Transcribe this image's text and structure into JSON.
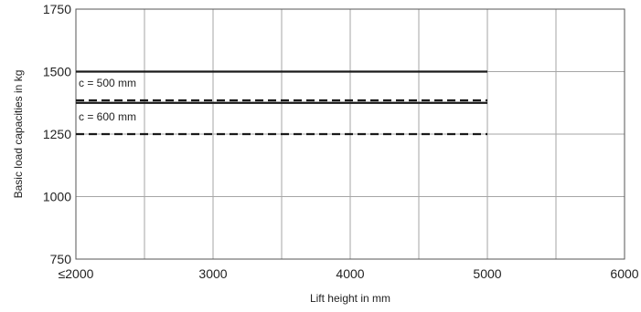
{
  "chart_data": {
    "type": "line",
    "xlabel": "Lift height in mm",
    "ylabel": "Basic load capacities in kg",
    "xlim": [
      2000,
      6000
    ],
    "ylim": [
      750,
      1750
    ],
    "x_ticks": [
      {
        "value": 2000,
        "label": "≤2000"
      },
      {
        "value": 3000,
        "label": "3000"
      },
      {
        "value": 4000,
        "label": "4000"
      },
      {
        "value": 5000,
        "label": "5000"
      },
      {
        "value": 6000,
        "label": "6000"
      }
    ],
    "y_ticks": [
      {
        "value": 750,
        "label": "750"
      },
      {
        "value": 1000,
        "label": "1000"
      },
      {
        "value": 1250,
        "label": "1250"
      },
      {
        "value": 1500,
        "label": "1500"
      },
      {
        "value": 1750,
        "label": "1750"
      }
    ],
    "grid": true,
    "grid_x_step": 500,
    "grid_y_step": 250,
    "series": [
      {
        "x": [
          2000,
          5000
        ],
        "y": [
          1500,
          1500
        ],
        "style": "solid",
        "color": "#1a1a1a"
      },
      {
        "x": [
          2000,
          5000
        ],
        "y": [
          1385,
          1385
        ],
        "style": "dashed",
        "color": "#1a1a1a"
      },
      {
        "x": [
          2000,
          5000
        ],
        "y": [
          1375,
          1375
        ],
        "style": "solid",
        "color": "#1a1a1a"
      },
      {
        "x": [
          2000,
          5000
        ],
        "y": [
          1250,
          1250
        ],
        "style": "dashed",
        "color": "#1a1a1a"
      }
    ],
    "annotations": [
      {
        "text": "c = 500 mm",
        "x": 2000,
        "y": 1440
      },
      {
        "text": "c = 600 mm",
        "x": 2000,
        "y": 1305
      }
    ]
  }
}
